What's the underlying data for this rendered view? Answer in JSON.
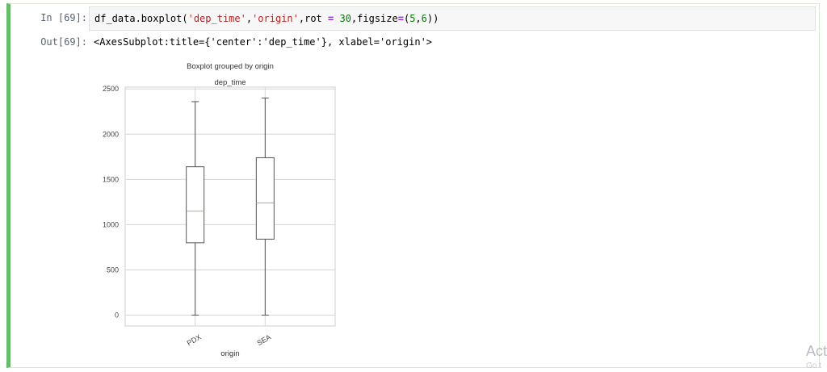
{
  "notebook": {
    "in_prompt": "In [69]:",
    "out_prompt": "Out[69]:",
    "code": {
      "prefix": "df_data.boxplot(",
      "arg1": "'dep_time'",
      "sep1": ",",
      "arg2": "'origin'",
      "sep2": ",rot ",
      "eq": "=",
      "sep3": " ",
      "num1": "30",
      "sep4": ",figsize",
      "eq2": "=",
      "paren_open": "(",
      "num2": "5",
      "comma": ",",
      "num3": "6",
      "suffix": "))"
    },
    "output_text": "<AxesSubplot:title={'center':'dep_time'}, xlabel='origin'>",
    "colors": {
      "cell_border_active": "#66bb6a",
      "string": "#ba2121",
      "operator": "#aa22ff",
      "number": "#008000",
      "prompt": "#5a6475"
    }
  },
  "watermark": {
    "line1": "Act",
    "line2": "Go t"
  },
  "chart_data": {
    "type": "box",
    "suptitle": "Boxplot grouped by origin",
    "title": "dep_time",
    "xlabel": "origin",
    "ylabel": "",
    "categories": [
      "PDX",
      "SEA"
    ],
    "ylim": [
      -120,
      2520
    ],
    "yticks": [
      0,
      500,
      1000,
      1500,
      2000,
      2500
    ],
    "grid": true,
    "boxes": [
      {
        "name": "PDX",
        "whislo": 0,
        "q1": 800,
        "median": 1150,
        "q3": 1640,
        "whishi": 2360
      },
      {
        "name": "SEA",
        "whislo": 0,
        "q1": 840,
        "median": 1240,
        "q3": 1740,
        "whishi": 2400
      }
    ],
    "tick_rotation": 30
  }
}
